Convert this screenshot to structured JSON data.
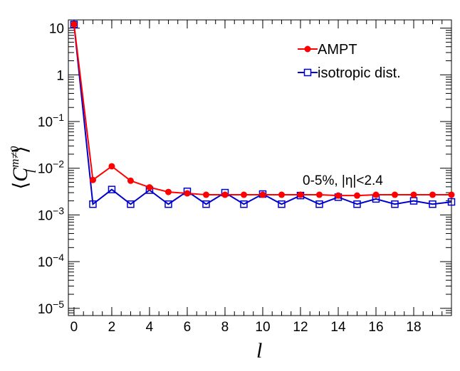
{
  "chart_data": {
    "type": "line",
    "title": "",
    "xlabel": "l",
    "ylabel": {
      "open": "⟨",
      "main": "C",
      "sub": "l",
      "sup": "m≠0",
      "close": "⟩"
    },
    "xlim": [
      -0.3,
      20
    ],
    "ylim": [
      7e-06,
      15
    ],
    "yscale": "log",
    "grid": false,
    "legend_position": "top-right",
    "x_ticks": [
      0,
      2,
      4,
      6,
      8,
      10,
      12,
      14,
      16,
      18
    ],
    "x_tick_labels": [
      "0",
      "2",
      "4",
      "6",
      "8",
      "10",
      "12",
      "14",
      "16",
      "18"
    ],
    "y_ticks": [
      {
        "value": 10,
        "base": "10",
        "exp": ""
      },
      {
        "value": 1,
        "base": "1",
        "exp": ""
      },
      {
        "value": 0.1,
        "base": "10",
        "exp": "−1"
      },
      {
        "value": 0.01,
        "base": "10",
        "exp": "−2"
      },
      {
        "value": 0.001,
        "base": "10",
        "exp": "−3"
      },
      {
        "value": 0.0001,
        "base": "10",
        "exp": "−4"
      },
      {
        "value": 1e-05,
        "base": "10",
        "exp": "−5"
      }
    ],
    "x": [
      0,
      1,
      2,
      3,
      4,
      5,
      6,
      7,
      8,
      9,
      10,
      11,
      12,
      13,
      14,
      15,
      16,
      17,
      18,
      19,
      20
    ],
    "series": [
      {
        "name": "AMPT",
        "color": "#ff0000",
        "marker": "filled-circle",
        "values": [
          12,
          0.0056,
          0.011,
          0.0054,
          0.0039,
          0.0031,
          0.0029,
          0.0027,
          0.0027,
          0.0027,
          0.0027,
          0.0027,
          0.0027,
          0.0027,
          0.0026,
          0.0026,
          0.0027,
          0.0027,
          0.0027,
          0.0027,
          0.0027
        ]
      },
      {
        "name": "isotropic dist.",
        "color": "#0000cc",
        "marker": "open-square",
        "values": [
          12,
          0.0017,
          0.0035,
          0.0017,
          0.0034,
          0.0017,
          0.0032,
          0.0017,
          0.003,
          0.0017,
          0.0028,
          0.0017,
          0.0026,
          0.0017,
          0.0024,
          0.0017,
          0.0022,
          0.0017,
          0.002,
          0.0017,
          0.0019
        ]
      }
    ],
    "annotation": "0-5%, |η|<2.4"
  }
}
